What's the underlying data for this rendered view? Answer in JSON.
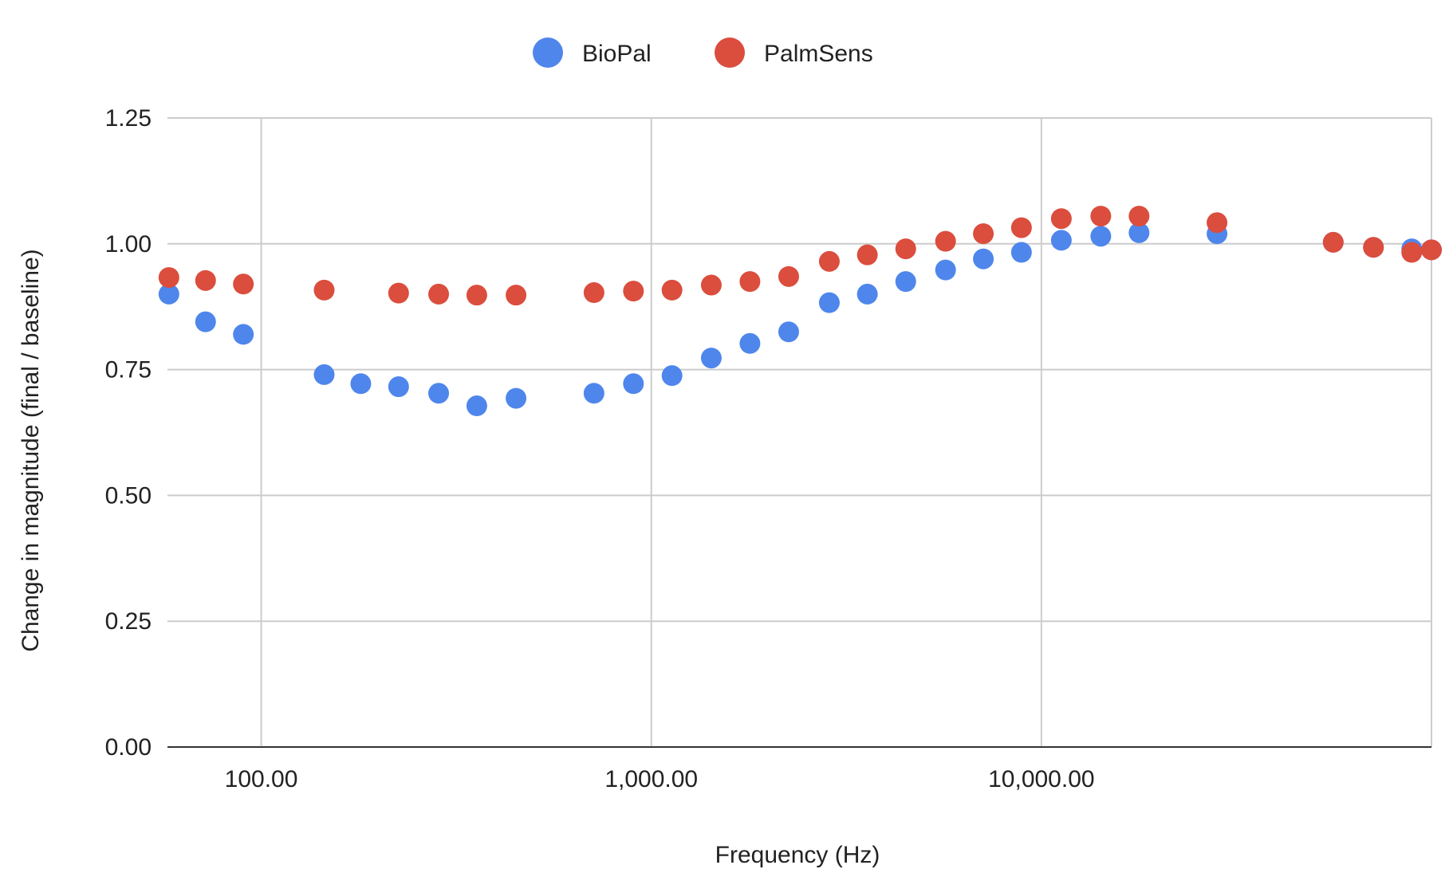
{
  "chart_data": {
    "type": "scatter",
    "xlabel": "Frequency (Hz)",
    "ylabel": "Change in magnitude (final / baseline)",
    "x_scale": "log",
    "xlim": [
      57.5,
      100000
    ],
    "ylim": [
      0,
      1.25
    ],
    "x_ticks": [
      100,
      1000,
      10000,
      100000
    ],
    "x_tick_labels": [
      "100.00",
      "1,000.00",
      "10,000.00",
      ""
    ],
    "y_ticks": [
      0,
      0.25,
      0.5,
      0.75,
      1.0,
      1.25
    ],
    "y_tick_labels": [
      "0.00",
      "0.25",
      "0.50",
      "0.75",
      "1.00",
      "1.25"
    ],
    "grid": true,
    "legend_position": "top-center",
    "series": [
      {
        "name": "BioPal",
        "color": "#4f86ec",
        "x": [
          58,
          72,
          90,
          145,
          180,
          225,
          285,
          357,
          450,
          713,
          900,
          1130,
          1425,
          1790,
          2250,
          2860,
          3580,
          4490,
          5680,
          7100,
          8890,
          11250,
          14200,
          17800,
          28200,
          56000,
          71000,
          89000,
          100000
        ],
        "y": [
          0.9,
          0.845,
          0.82,
          0.74,
          0.722,
          0.716,
          0.703,
          0.678,
          0.693,
          0.703,
          0.722,
          0.738,
          0.773,
          0.802,
          0.825,
          0.883,
          0.9,
          0.925,
          0.948,
          0.97,
          0.983,
          1.007,
          1.015,
          1.022,
          1.02,
          1.003,
          0.993,
          0.99,
          0.988
        ]
      },
      {
        "name": "PalmSens",
        "color": "#db4d3d",
        "x": [
          58,
          72,
          90,
          145,
          225,
          285,
          357,
          450,
          713,
          900,
          1130,
          1425,
          1790,
          2250,
          2860,
          3580,
          4490,
          5680,
          7100,
          8890,
          11250,
          14200,
          17800,
          28200,
          56000,
          71000,
          89000,
          100000
        ],
        "y": [
          0.933,
          0.927,
          0.92,
          0.908,
          0.902,
          0.9,
          0.898,
          0.898,
          0.903,
          0.906,
          0.908,
          0.918,
          0.925,
          0.935,
          0.965,
          0.978,
          0.99,
          1.005,
          1.02,
          1.032,
          1.05,
          1.055,
          1.055,
          1.042,
          1.003,
          0.993,
          0.983,
          0.988
        ]
      }
    ]
  }
}
